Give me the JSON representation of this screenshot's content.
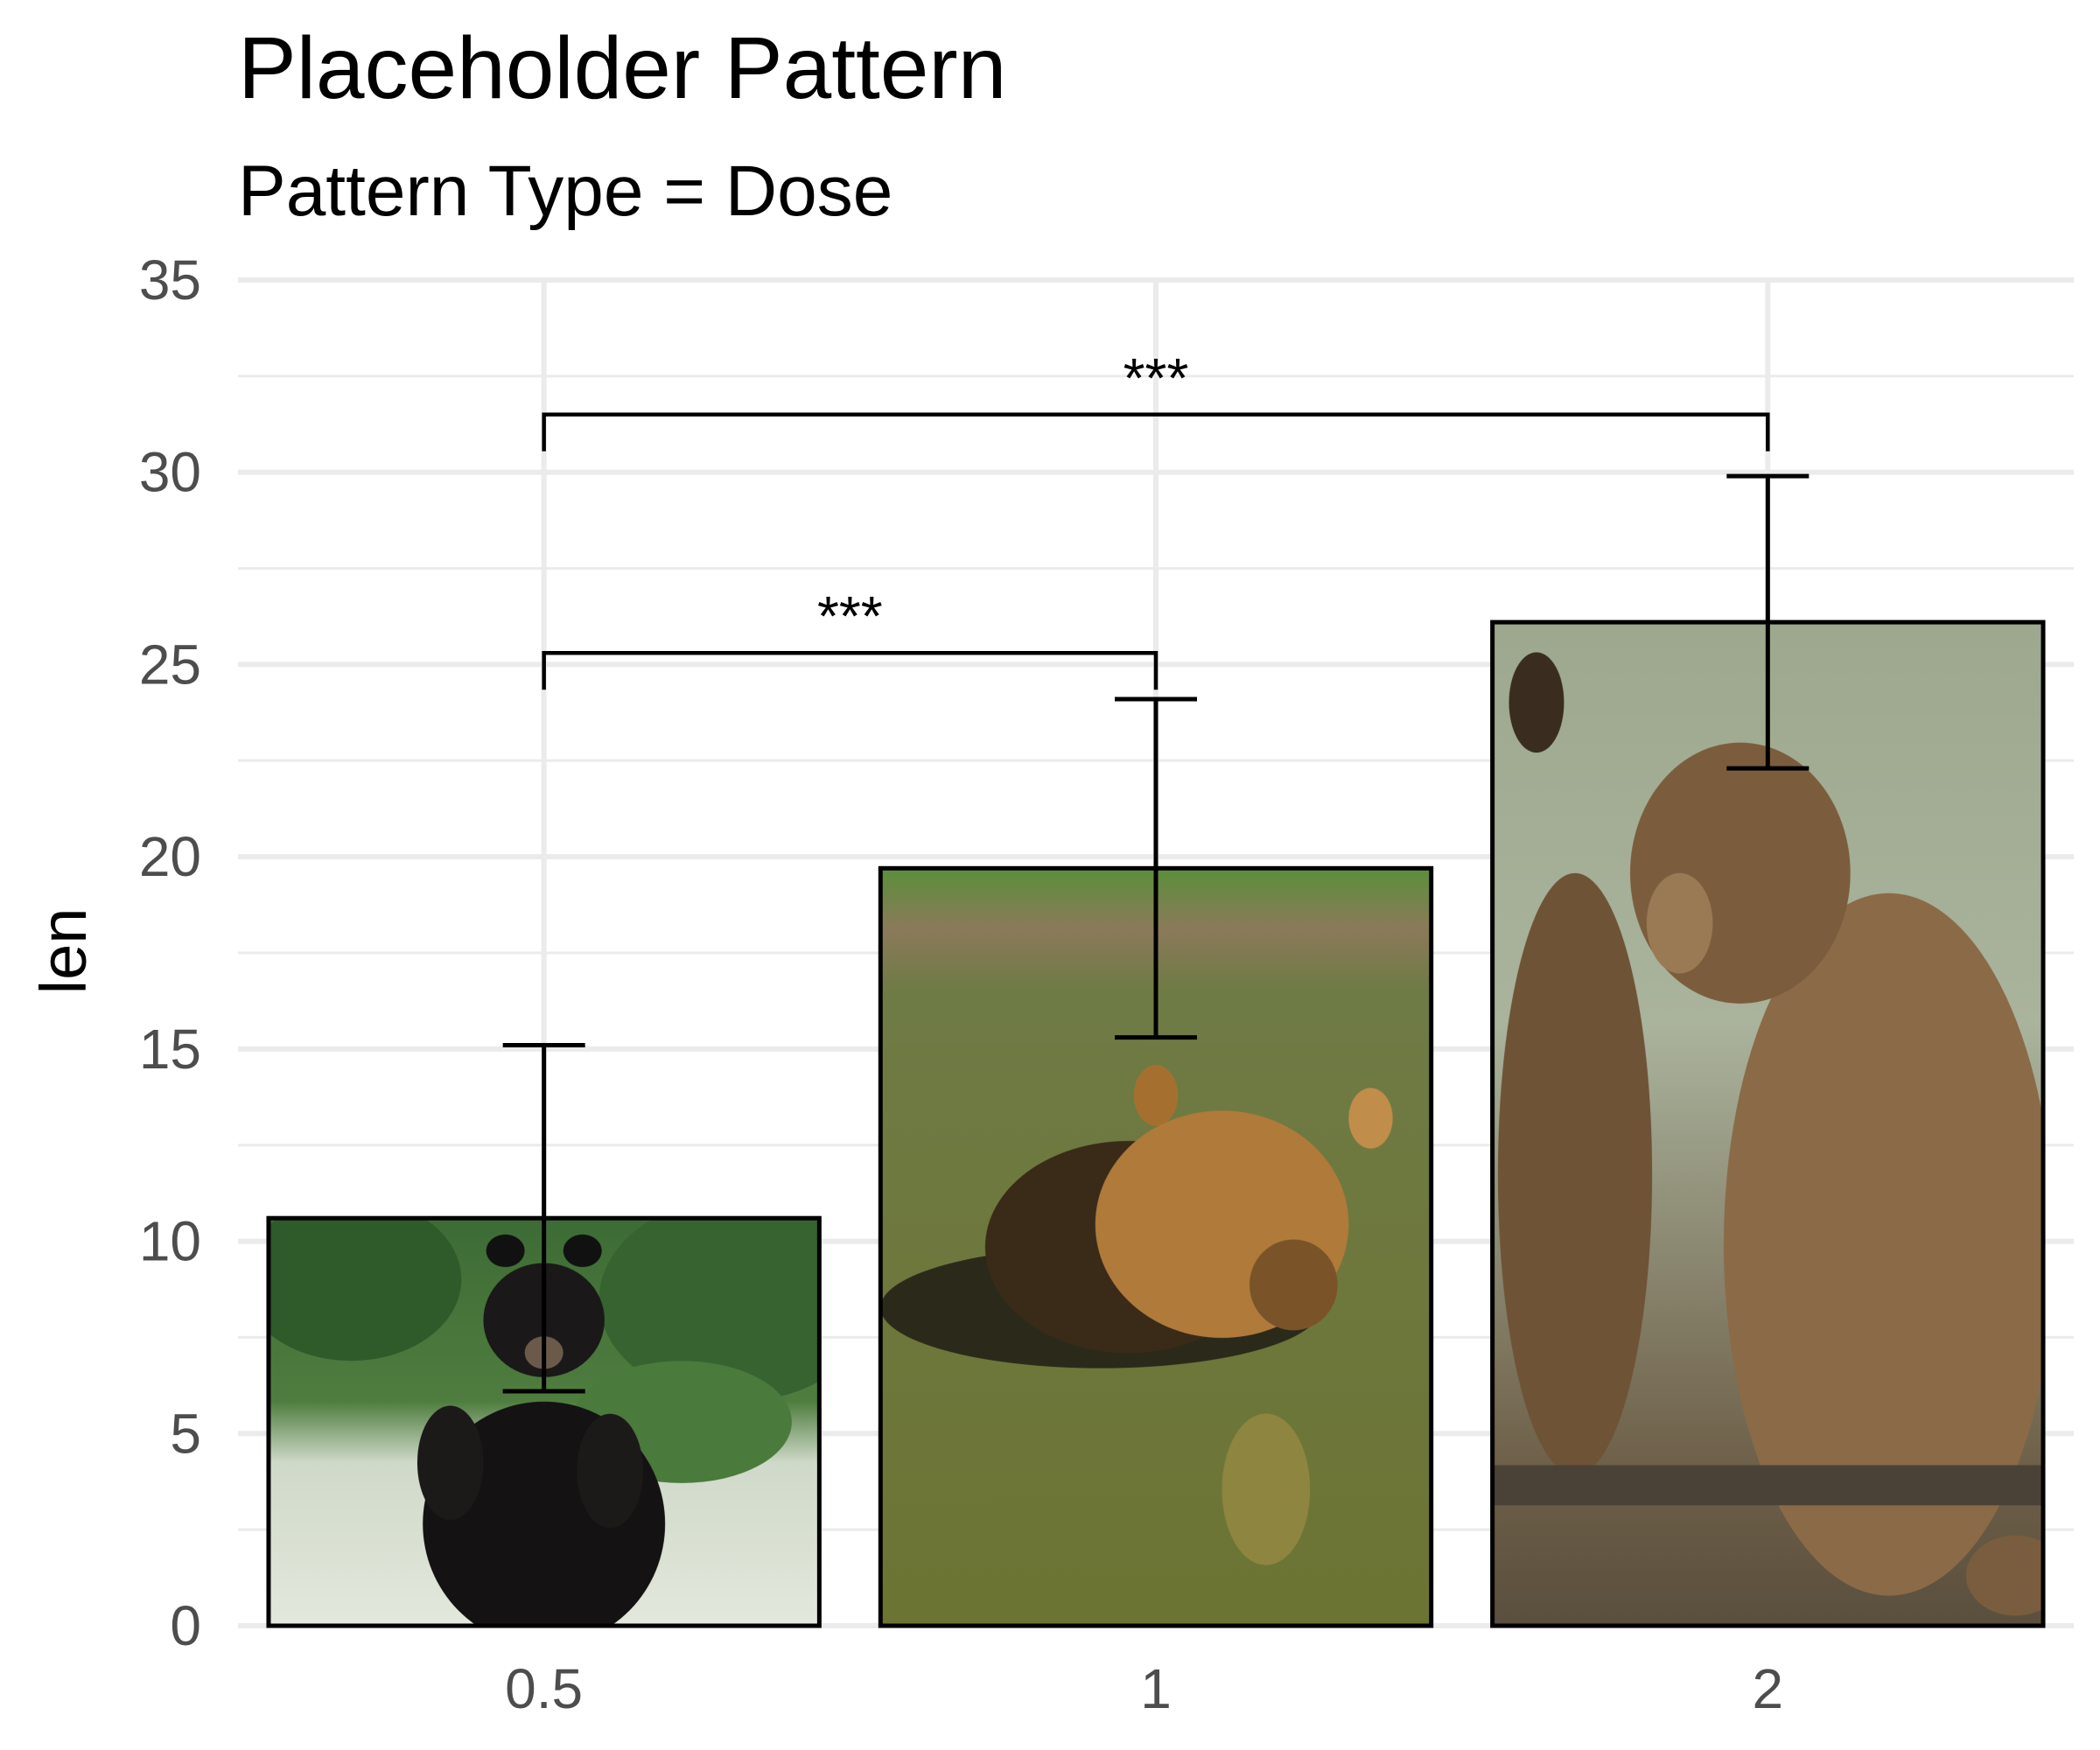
{
  "chart_data": {
    "type": "bar",
    "title": "Placeholder Pattern",
    "subtitle": "Pattern Type = Dose",
    "xlabel": "",
    "ylabel": "len",
    "categories": [
      "0.5",
      "1",
      "2"
    ],
    "values": [
      10.6,
      19.7,
      26.1
    ],
    "error_bars": [
      {
        "low": 6.1,
        "high": 15.1
      },
      {
        "low": 15.3,
        "high": 24.1
      },
      {
        "low": 22.3,
        "high": 29.9
      }
    ],
    "ylim": [
      0,
      35
    ],
    "yticks": [
      0,
      5,
      10,
      15,
      20,
      25,
      30,
      35
    ],
    "grid": true,
    "bar_fill": "image",
    "bar_images": [
      "black-bear-standing",
      "brown-bear-swimming",
      "brown-bear-sitting"
    ],
    "bar_outline": "#000000",
    "significance": [
      {
        "from": "0.5",
        "to": "1",
        "y": 25.3,
        "label": "***"
      },
      {
        "from": "0.5",
        "to": "2",
        "y": 31.5,
        "label": "***"
      }
    ]
  }
}
